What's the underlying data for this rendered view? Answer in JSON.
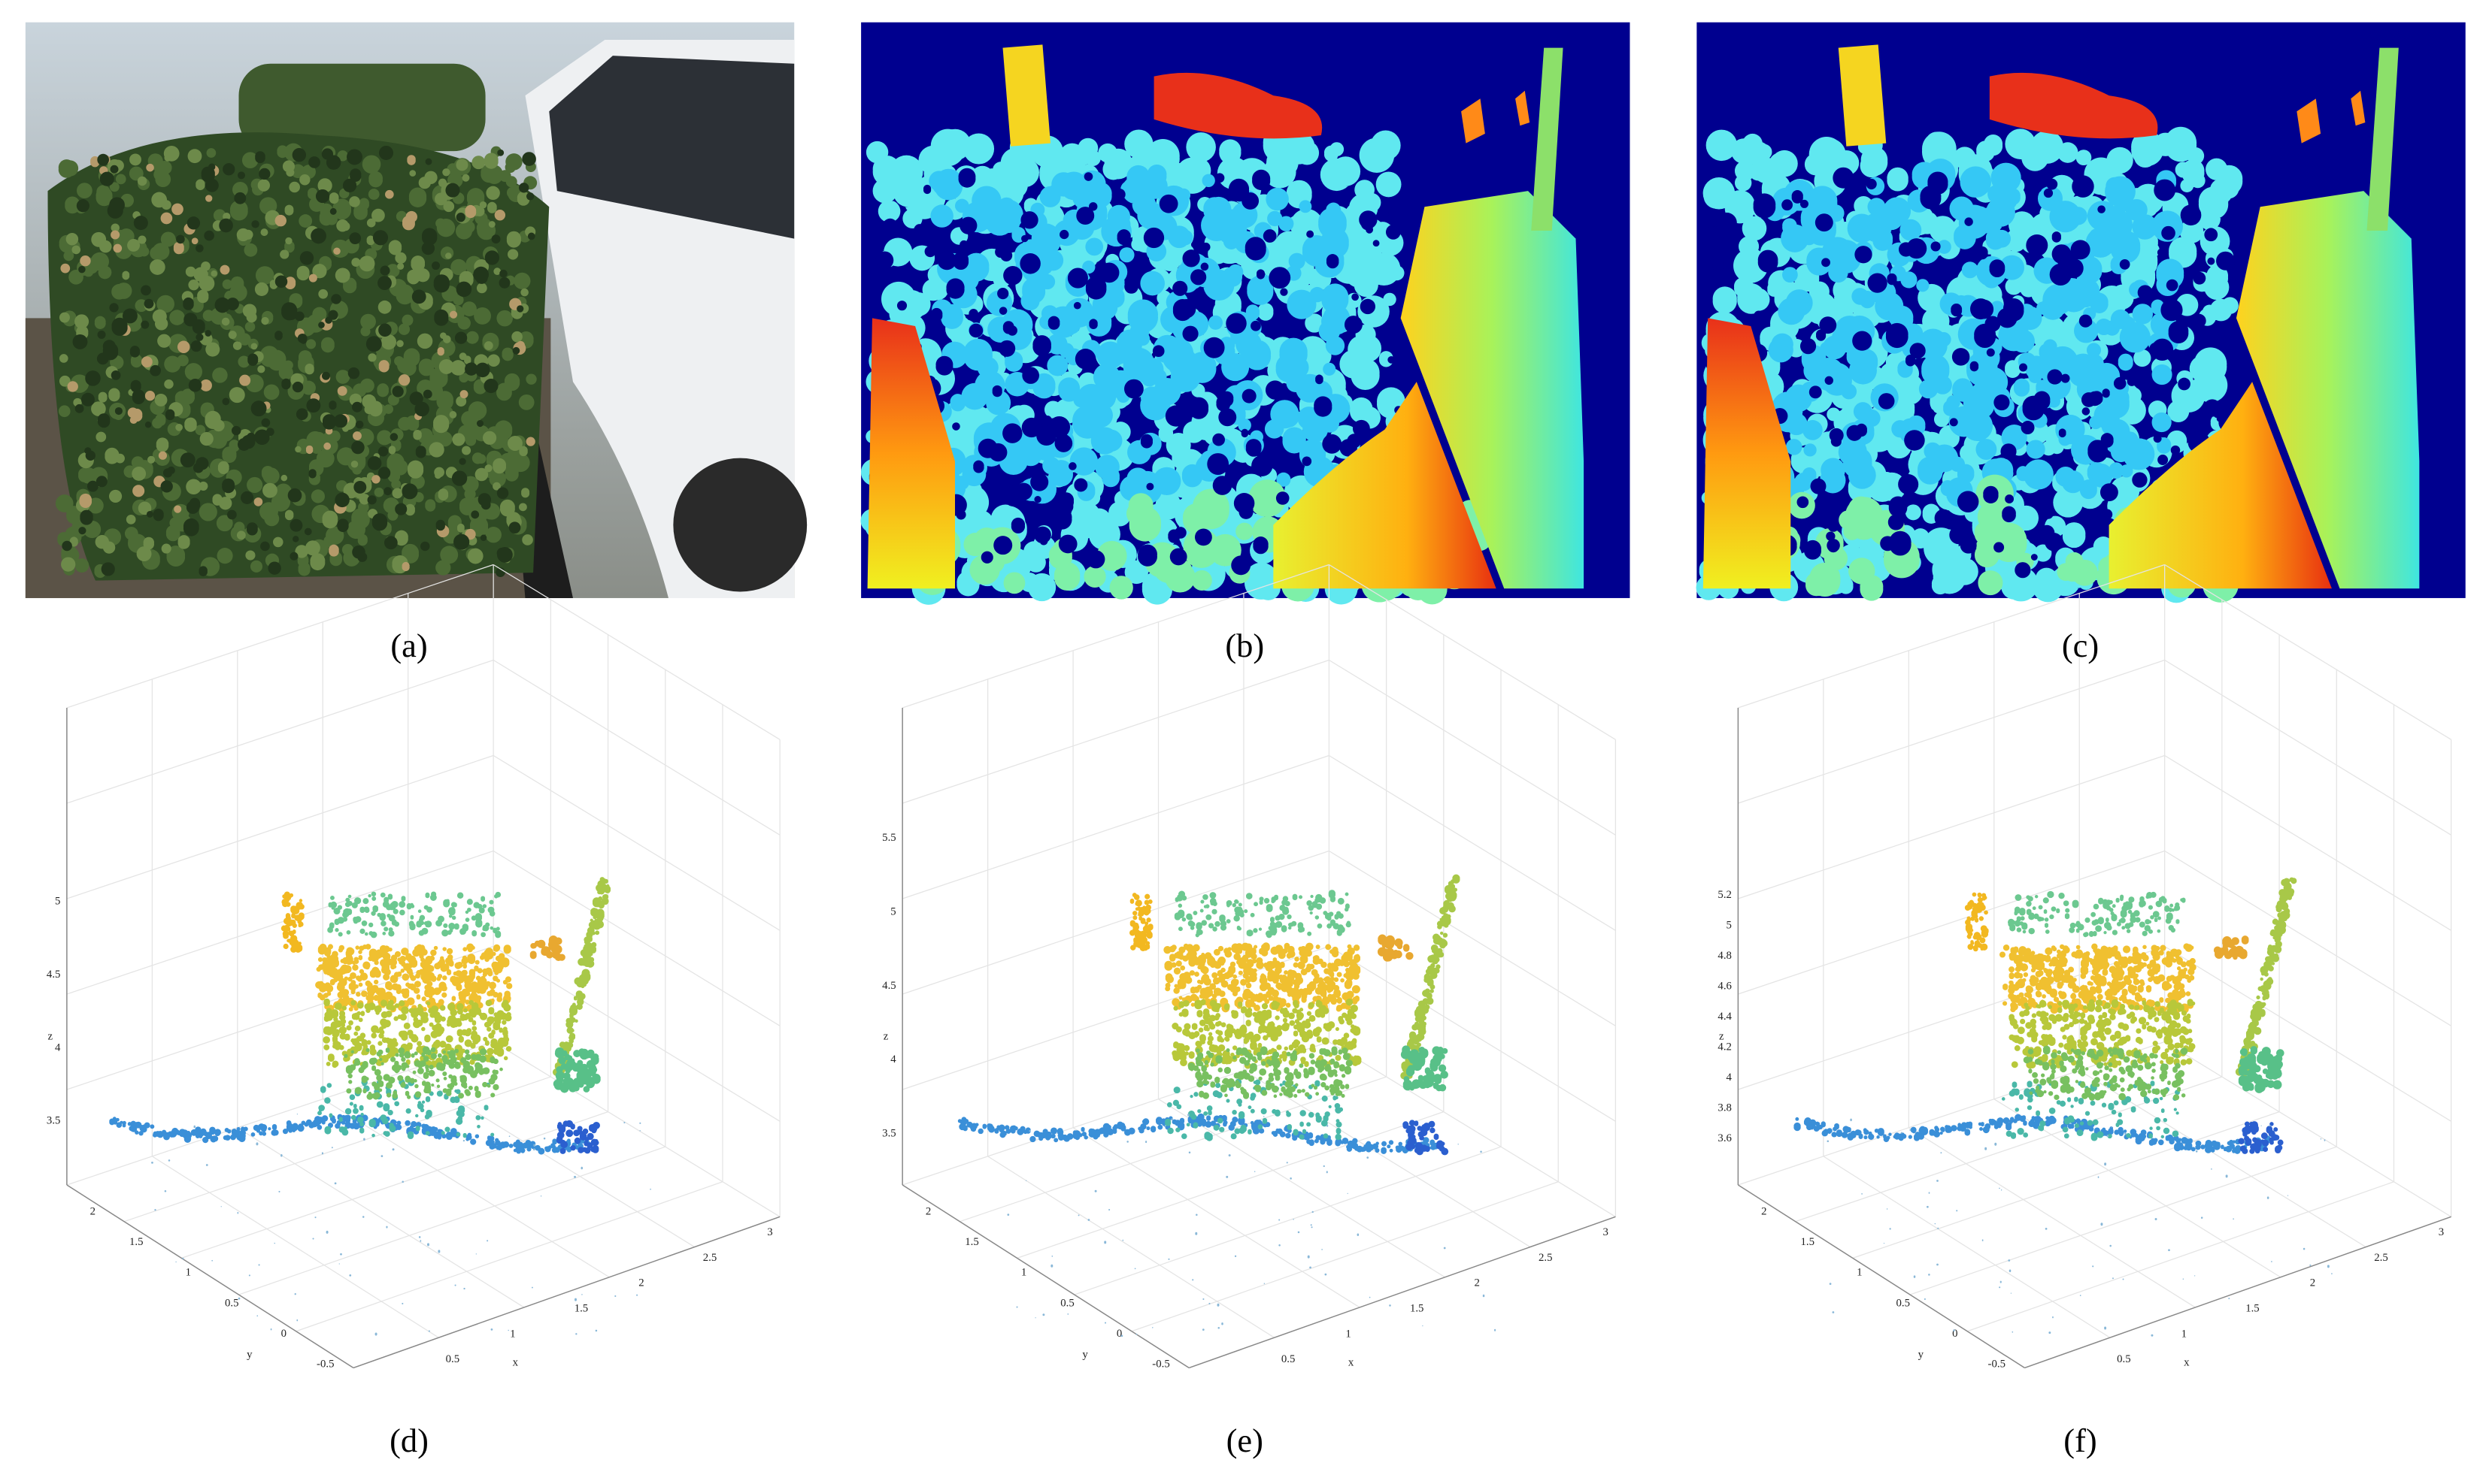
{
  "panels": [
    {
      "label": "(a)"
    },
    {
      "label": "(b)"
    },
    {
      "label": "(c)"
    },
    {
      "label": "(d)"
    },
    {
      "label": "(e)"
    },
    {
      "label": "(f)"
    }
  ],
  "plots": [
    {
      "zticks": [
        5,
        4.5,
        4,
        3.5
      ],
      "yticks": [
        2,
        1.5,
        1,
        0.5,
        0,
        -0.5
      ],
      "xticks": [
        0.5,
        1,
        1.5,
        2,
        2.5,
        3
      ],
      "xlabel": "x",
      "ylabel": "y",
      "zlabel": "z"
    },
    {
      "zticks": [
        5.5,
        5,
        4.5,
        4,
        3.5
      ],
      "yticks": [
        2,
        1.5,
        1,
        0.5,
        0,
        -0.5
      ],
      "xticks": [
        0.5,
        1,
        1.5,
        2,
        2.5,
        3
      ],
      "xlabel": "x",
      "ylabel": "y",
      "zlabel": "z"
    },
    {
      "zticks": [
        5.2,
        5,
        4.8,
        4.6,
        4.4,
        4.2,
        4,
        3.8,
        3.6
      ],
      "yticks": [
        2,
        1.5,
        1,
        0.5,
        0,
        -0.5
      ],
      "xticks": [
        0.5,
        1,
        1.5,
        2,
        2.5,
        3
      ],
      "xlabel": "x",
      "ylabel": "y",
      "zlabel": "z"
    }
  ]
}
